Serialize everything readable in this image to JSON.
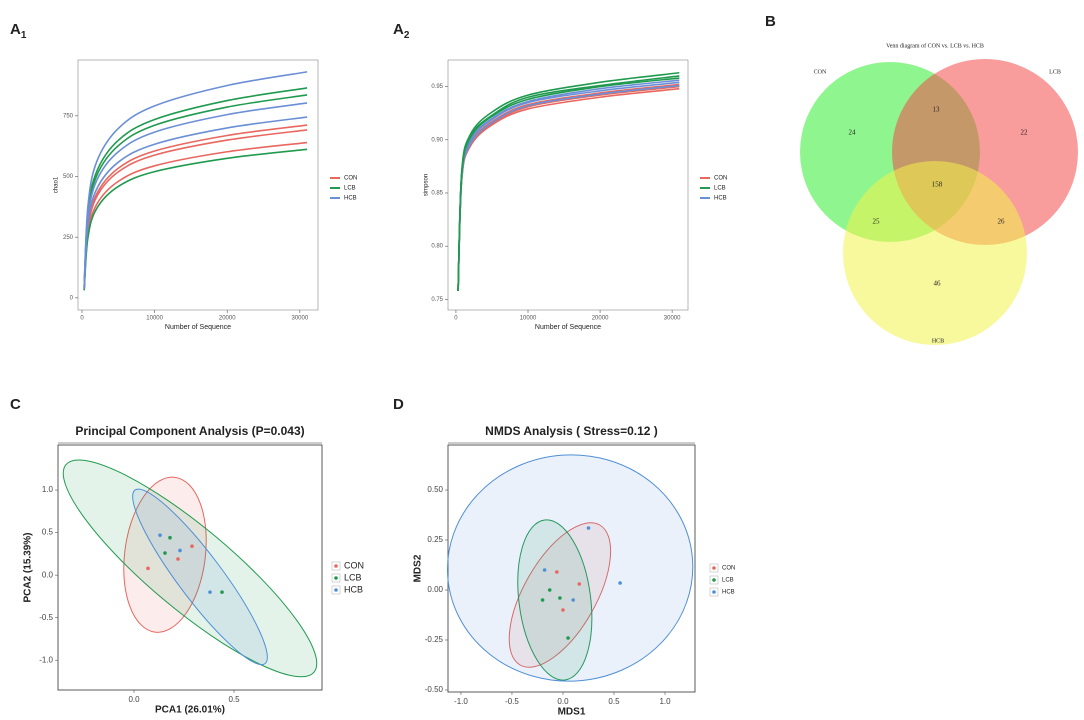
{
  "chart_data": [
    {
      "type": "line",
      "panel": "A",
      "panel_sub": "1",
      "ylabel": "chao1",
      "xlabel": "Number of Sequence",
      "xlim": [
        -550,
        32500
      ],
      "xticks": [
        0,
        10000,
        20000,
        30000
      ],
      "ylim": [
        -50,
        980
      ],
      "yticks": [
        0,
        250,
        500,
        750
      ],
      "x": [
        300,
        800,
        2000,
        5000,
        10000,
        20000,
        31000
      ],
      "legend": [
        {
          "name": "CON",
          "color": "#e8675f"
        },
        {
          "name": "LCB",
          "color": "#1f9a4f"
        },
        {
          "name": "HCB",
          "color": "#6b8fd6"
        }
      ],
      "series": [
        {
          "group": 0,
          "values": [
            36,
            285,
            427,
            534,
            605,
            669,
            712
          ]
        },
        {
          "group": 0,
          "values": [
            35,
            277,
            415,
            519,
            588,
            650,
            692
          ]
        },
        {
          "group": 0,
          "values": [
            32,
            256,
            384,
            480,
            544,
            602,
            640
          ]
        },
        {
          "group": 1,
          "values": [
            43,
            346,
            519,
            649,
            735,
            813,
            865
          ]
        },
        {
          "group": 1,
          "values": [
            42,
            334,
            502,
            627,
            711,
            786,
            836
          ]
        },
        {
          "group": 1,
          "values": [
            31,
            245,
            367,
            459,
            520,
            575,
            612
          ]
        },
        {
          "group": 2,
          "values": [
            47,
            372,
            559,
            698,
            791,
            875,
            931
          ]
        },
        {
          "group": 2,
          "values": [
            40,
            321,
            482,
            602,
            683,
            755,
            803
          ]
        },
        {
          "group": 2,
          "values": [
            37,
            298,
            447,
            559,
            633,
            700,
            745
          ]
        }
      ]
    },
    {
      "type": "line",
      "panel": "A",
      "panel_sub": "2",
      "ylabel": "simpson",
      "xlabel": "Number of Sequence",
      "xlim": [
        -1100,
        32200
      ],
      "xticks": [
        0,
        10000,
        20000,
        30000
      ],
      "ylim": [
        0.74,
        0.975
      ],
      "yticks": [
        0.75,
        {
          "value": 0.8,
          "label": "0.80"
        },
        0.85,
        {
          "value": 0.9,
          "label": "0.90"
        },
        0.95
      ],
      "x": [
        300,
        800,
        2000,
        5000,
        10000,
        20000,
        31000
      ],
      "legend": [
        {
          "name": "CON",
          "color": "#e8675f"
        },
        {
          "name": "LCB",
          "color": "#1f9a4f"
        },
        {
          "name": "HCB",
          "color": "#6b8fd6"
        }
      ],
      "series": [
        {
          "group": 0,
          "values": [
            0.758,
            0.864,
            0.897,
            0.917,
            0.933,
            0.944,
            0.952
          ]
        },
        {
          "group": 0,
          "values": [
            0.758,
            0.863,
            0.896,
            0.915,
            0.931,
            0.942,
            0.95
          ]
        },
        {
          "group": 0,
          "values": [
            0.758,
            0.862,
            0.894,
            0.914,
            0.929,
            0.94,
            0.948
          ]
        },
        {
          "group": 2,
          "values": [
            0.758,
            0.866,
            0.9,
            0.92,
            0.936,
            0.948,
            0.956
          ]
        },
        {
          "group": 2,
          "values": [
            0.758,
            0.865,
            0.899,
            0.919,
            0.935,
            0.946,
            0.954
          ]
        },
        {
          "group": 2,
          "values": [
            0.758,
            0.863,
            0.896,
            0.916,
            0.932,
            0.943,
            0.951
          ]
        },
        {
          "group": 1,
          "values": [
            0.758,
            0.87,
            0.905,
            0.926,
            0.942,
            0.954,
            0.963
          ]
        },
        {
          "group": 1,
          "values": [
            0.758,
            0.868,
            0.903,
            0.923,
            0.94,
            0.951,
            0.96
          ]
        },
        {
          "group": 1,
          "values": [
            0.758,
            0.867,
            0.902,
            0.922,
            0.938,
            0.95,
            0.958
          ]
        }
      ]
    },
    {
      "type": "venn",
      "panel": "B",
      "title": "Venn diagram of CON vs. LCB vs. HCB",
      "sets": [
        {
          "name": "CON",
          "color": "#33ee33"
        },
        {
          "name": "LCB",
          "color": "#f24b4b"
        },
        {
          "name": "HCB",
          "color": "#f2f24b"
        }
      ],
      "values": [
        24,
        13,
        22,
        158,
        25,
        26,
        46
      ]
    },
    {
      "type": "scatter",
      "panel": "C",
      "title": "Principal Component Analysis (P=0.043)",
      "xlabel": "PCA1 (26.01%)",
      "ylabel": "PCA2 (15.39%)",
      "xlim": [
        -0.38,
        0.94
      ],
      "xticks": [
        {
          "value": 0,
          "label": "0.0"
        },
        0.5
      ],
      "ylim": [
        -1.35,
        1.53
      ],
      "yticks": [
        {
          "value": -1,
          "label": "-1.0"
        },
        -0.5,
        {
          "value": 0,
          "label": "0.0"
        },
        0.5,
        {
          "value": 1,
          "label": "1.0"
        }
      ],
      "series": [
        {
          "name": "CON",
          "color": "#e8675f",
          "x": [
            0.07,
            0.22,
            0.29
          ],
          "y": [
            0.08,
            0.19,
            0.34
          ],
          "ellipse": {
            "center": [
              0.155,
              0.24
            ],
            "major": [
              0.105,
              -0.67
            ],
            "minor": [
              0.355,
              0.18
            ]
          }
        },
        {
          "name": "LCB",
          "color": "#1f9a4f",
          "x": [
            0.155,
            0.18,
            0.44
          ],
          "y": [
            0.26,
            0.44,
            -0.2
          ],
          "ellipse": {
            "center": [
              0.28,
              0.08
            ],
            "major": [
              0.9,
              -1.14
            ],
            "minor": [
              0.41,
              0.45
            ]
          }
        },
        {
          "name": "HCB",
          "color": "#4f8fd6",
          "x": [
            0.13,
            0.23,
            0.38
          ],
          "y": [
            0.47,
            0.29,
            -0.2
          ],
          "ellipse": {
            "center": [
              0.33,
              -0.02
            ],
            "major": [
              0.655,
              -1.04
            ],
            "minor": [
              0.42,
              0.13
            ]
          }
        }
      ]
    },
    {
      "type": "scatter",
      "panel": "D",
      "title": "NMDS Analysis ( Stress=0.12 )",
      "xlabel": "MDS1",
      "ylabel": "MDS2",
      "xlim": [
        -1.127,
        1.294
      ],
      "xticks": [
        {
          "value": -1,
          "label": "-1.0"
        },
        -0.5,
        {
          "value": 0,
          "label": "0.0"
        },
        0.5,
        {
          "value": 1,
          "label": "1.0"
        }
      ],
      "ylim": [
        -0.51,
        0.725
      ],
      "yticks": [
        {
          "value": -0.5,
          "label": "-0.50"
        },
        -0.25,
        {
          "value": 0,
          "label": "0.00"
        },
        0.25,
        {
          "value": 0.5,
          "label": "0.50"
        }
      ],
      "series": [
        {
          "name": "CON",
          "color": "#e8675f",
          "x": [
            -0.06,
            0.16,
            0.0
          ],
          "y": [
            0.09,
            0.03,
            -0.1
          ],
          "ellipse": {
            "center": [
              -0.03,
              -0.025
            ],
            "major": [
              0.36,
              0.325
            ],
            "minor": [
              -0.37,
              0.025
            ]
          }
        },
        {
          "name": "LCB",
          "color": "#1f9a4f",
          "x": [
            -0.2,
            -0.13,
            0.05,
            -0.03
          ],
          "y": [
            -0.05,
            0.0,
            -0.24,
            -0.04
          ],
          "ellipse": {
            "center": [
              -0.08,
              -0.05
            ],
            "major": [
              0.02,
              -0.45
            ],
            "minor": [
              0.27,
              -0.065
            ]
          }
        },
        {
          "name": "HCB",
          "color": "#4f8fd6",
          "x": [
            -0.18,
            0.25,
            0.56,
            0.1
          ],
          "y": [
            0.1,
            0.31,
            0.035,
            -0.05
          ],
          "ellipse": {
            "center": [
              0.07,
              0.11
            ],
            "major": [
              1.27,
              0.15
            ],
            "minor": [
              0.12,
              0.675
            ]
          }
        }
      ]
    }
  ]
}
